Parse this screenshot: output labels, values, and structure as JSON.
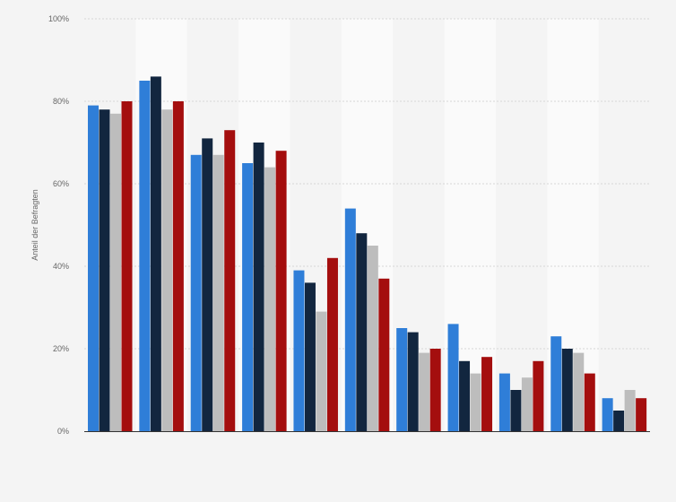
{
  "chart_data": {
    "type": "bar",
    "title": "",
    "xlabel": "",
    "ylabel": "Anteil der Befragten",
    "ylim": [
      0,
      100
    ],
    "yticks": [
      0,
      20,
      40,
      60,
      80,
      100
    ],
    "ytick_suffix": "%",
    "grid": true,
    "legend": "none",
    "categories": [
      "",
      "",
      "",
      "",
      "",
      "",
      "",
      "",
      "",
      "",
      ""
    ],
    "series": [
      {
        "color": "#2f7ed8",
        "values": [
          79,
          85,
          67,
          65,
          39,
          54,
          25,
          26,
          14,
          23,
          8
        ]
      },
      {
        "color": "#12263f",
        "values": [
          78,
          86,
          71,
          70,
          36,
          48,
          24,
          17,
          10,
          20,
          5
        ]
      },
      {
        "color": "#bdbdbd",
        "values": [
          77,
          78,
          67,
          64,
          29,
          45,
          19,
          14,
          13,
          19,
          10
        ]
      },
      {
        "color": "#a40e0e",
        "values": [
          80,
          80,
          73,
          68,
          42,
          37,
          20,
          18,
          17,
          14,
          8
        ]
      }
    ]
  },
  "colors": {
    "background": "#f4f4f4",
    "band": "#fafafa",
    "grid": "#d6d6d6",
    "axis": "#333333",
    "text": "#666666"
  }
}
